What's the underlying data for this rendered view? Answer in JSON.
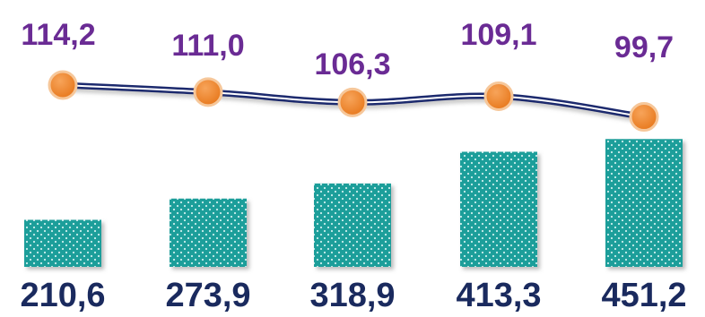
{
  "chart_data": {
    "type": "bar-line-combo",
    "bars": {
      "values": [
        210.6,
        273.9,
        318.9,
        413.3,
        451.2
      ],
      "labels": [
        "210,6",
        "273,9",
        "318,9",
        "413,3",
        "451,2"
      ]
    },
    "line": {
      "values": [
        114.2,
        111.0,
        106.3,
        109.1,
        99.7
      ],
      "labels": [
        "114,2",
        "111,0",
        "106,3",
        "109,1",
        "99,7"
      ]
    },
    "legend": "none",
    "grid": false
  },
  "colors": {
    "bar_fill": "#1a9e9a",
    "bar_dot": "#cdeeed",
    "line_outer": "#1f2b6e",
    "line_inner": "#ffffff",
    "marker_fill": "#f08a2c",
    "marker_stroke": "#f6c79a",
    "line_label": "#6a2b94",
    "bar_label": "#1a2a5e"
  }
}
